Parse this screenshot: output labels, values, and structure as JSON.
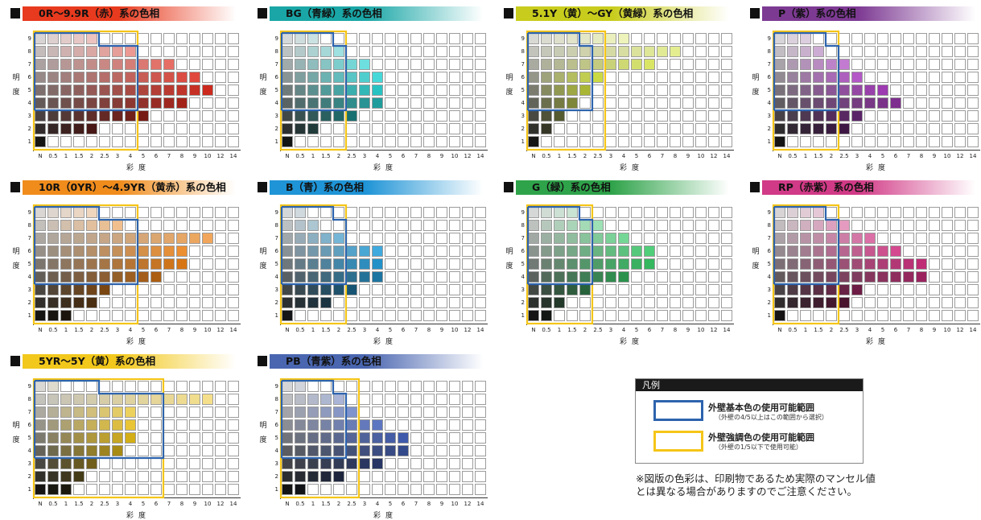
{
  "chart_data": {
    "type": "heatmap",
    "y_axis_label": "明度",
    "x_axis_label": "彩度",
    "y_ticks": [
      "1",
      "2",
      "3",
      "4",
      "5",
      "6",
      "7",
      "8",
      "9"
    ],
    "x_ticks": [
      "N",
      "0.5",
      "1",
      "1.5",
      "2",
      "2.5",
      "3",
      "4",
      "5",
      "6",
      "7",
      "8",
      "9",
      "10",
      "12",
      "14"
    ],
    "grid_on": true,
    "panels": [
      {
        "title": "0R〜9.9R（赤）系の色相",
        "hue": 4,
        "sat": 70,
        "title_color": "#e83a1e",
        "max_chroma": [
          1,
          5,
          9,
          12,
          14,
          13,
          11,
          8,
          5
        ],
        "basic_range": {
          "value_min": 4,
          "value_max": 9,
          "chroma_max": [
            "2 (V9)",
            "4 (V≤8)"
          ]
        },
        "accent_range": {
          "value_min": 1,
          "value_max": 9,
          "chroma_max": "4"
        }
      },
      {
        "title": "BG（青緑）系の色相",
        "hue": 180,
        "sat": 65,
        "title_color": "#1aa6a6",
        "max_chroma": [
          1,
          3,
          6,
          8,
          8,
          8,
          7,
          5,
          3
        ],
        "basic_range": {
          "value_min": 4,
          "value_max": 9,
          "chroma_max": [
            "1.5 (V9)",
            "2 (V≤8)"
          ]
        },
        "accent_range": {
          "value_min": 1,
          "value_max": 9,
          "chroma_max": "2"
        }
      },
      {
        "title": "5.1Y（黄）〜GY（黄緑）系の色相",
        "hue": 66,
        "sat": 70,
        "title_color": "#c8cc1c",
        "max_chroma": [
          1,
          2,
          3,
          4,
          5,
          6,
          10,
          12,
          8
        ],
        "basic_range": {
          "value_min": 4,
          "value_max": 9,
          "chroma_max": [
            "1.5 (V9)",
            "2 (V≤8)"
          ]
        },
        "accent_range": {
          "value_min": 1,
          "value_max": 9,
          "chroma_max": "2.5"
        }
      },
      {
        "title": "P（紫）系の色相",
        "hue": 290,
        "sat": 50,
        "title_color": "#7d3a93",
        "max_chroma": [
          1,
          6,
          7,
          10,
          9,
          7,
          6,
          4,
          3
        ],
        "basic_range": {
          "value_min": 4,
          "value_max": 9,
          "chroma_max": [
            "1.5 (V9)",
            "2 (V≤8)"
          ]
        },
        "accent_range": {
          "value_min": 1,
          "value_max": 9,
          "chroma_max": "2"
        }
      },
      {
        "title": "10R（0YR）〜4.9YR（黄赤）系の色相",
        "hue": 30,
        "sat": 80,
        "title_color": "#f08c1c",
        "max_chroma": [
          3,
          5,
          6,
          10,
          12,
          12,
          14,
          7,
          5
        ],
        "basic_range": {
          "value_min": 4,
          "value_max": 9,
          "chroma_max": [
            "2 (V9)",
            "4 (V≤8)"
          ]
        },
        "accent_range": {
          "value_min": 1,
          "value_max": 9,
          "chroma_max": "4"
        }
      },
      {
        "title": "B（青）系の色相",
        "hue": 200,
        "sat": 70,
        "title_color": "#1f94d6",
        "max_chroma": [
          1,
          4,
          6,
          8,
          8,
          8,
          5,
          3,
          2
        ],
        "basic_range": {
          "value_min": 4,
          "value_max": 9,
          "chroma_max": [
            "1.5 (V9)",
            "2 (V≤8)"
          ]
        },
        "accent_range": {
          "value_min": 1,
          "value_max": 9,
          "chroma_max": "2"
        }
      },
      {
        "title": "G（緑）系の色相",
        "hue": 140,
        "sat": 55,
        "title_color": "#2fa34a",
        "max_chroma": [
          2,
          3,
          5,
          8,
          10,
          10,
          8,
          6,
          4
        ],
        "basic_range": {
          "value_min": 4,
          "value_max": 9,
          "chroma_max": [
            "1.5 (V9)",
            "2 (V≤8)"
          ]
        },
        "accent_range": {
          "value_min": 1,
          "value_max": 9,
          "chroma_max": "2"
        }
      },
      {
        "title": "RP（赤紫）系の色相",
        "hue": 330,
        "sat": 60,
        "title_color": "#d13a86",
        "max_chroma": [
          1,
          6,
          7,
          12,
          12,
          10,
          8,
          6,
          4
        ],
        "basic_range": {
          "value_min": 4,
          "value_max": 9,
          "chroma_max": [
            "1.5 (V9)",
            "2 (V≤8)"
          ]
        },
        "accent_range": {
          "value_min": 1,
          "value_max": 9,
          "chroma_max": "2"
        }
      },
      {
        "title": "5YR〜5Y（黄）系の色相",
        "hue": 48,
        "sat": 80,
        "title_color": "#f2c81c",
        "max_chroma": [
          3,
          4,
          5,
          7,
          8,
          8,
          8,
          14,
          2
        ],
        "basic_range": {
          "value_min": 4,
          "value_max": 9,
          "chroma_max": [
            "2 (V9)",
            "6 (V≤8)"
          ]
        },
        "accent_range": {
          "value_min": 1,
          "value_max": 9,
          "chroma_max": "6"
        }
      },
      {
        "title": "PB（青紫）系の色相",
        "hue": 225,
        "sat": 45,
        "title_color": "#4a66b0",
        "max_chroma": [
          2,
          5,
          8,
          10,
          10,
          8,
          6,
          5,
          2
        ],
        "basic_range": {
          "value_min": 4,
          "value_max": 9,
          "chroma_max": [
            "1.5 (V9)",
            "2 (V≤8)"
          ]
        },
        "accent_range": {
          "value_min": 1,
          "value_max": 9,
          "chroma_max": "2.5"
        }
      }
    ]
  },
  "legend": {
    "title": "凡例",
    "items": [
      {
        "label": "外壁基本色の使用可能範囲",
        "sub": "（外壁の4/5以上はこの範囲から選択）",
        "color": "#2d63ad"
      },
      {
        "label": "外壁強調色の使用可能範囲",
        "sub": "（外壁の1/5以下で使用可能）",
        "color": "#f5c518"
      }
    ]
  },
  "note": "※図版の色彩は、印刷物であるため実際のマンセル値とは異なる場合がありますのでご注意ください。"
}
